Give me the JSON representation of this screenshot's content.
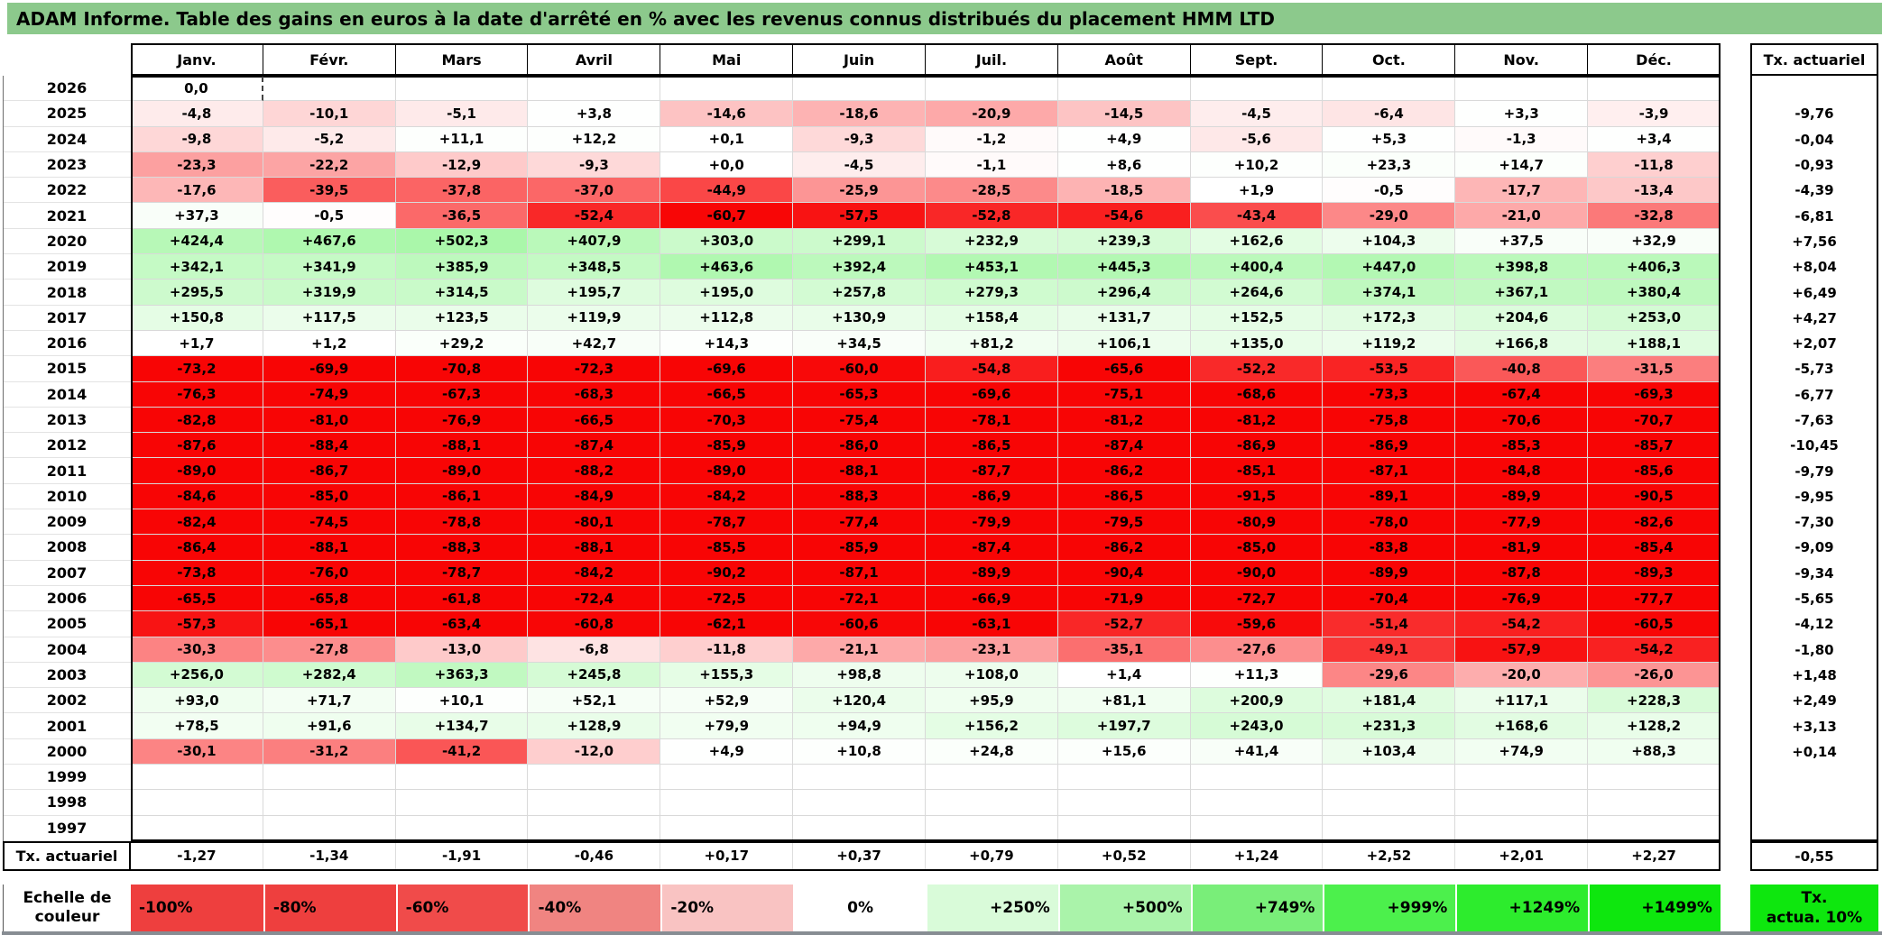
{
  "title": "ADAM Informe. Table des gains en euros à la date d'arrêté en % avec les revenus connus distribués du placement HMM LTD",
  "months": [
    "Janv.",
    "Févr.",
    "Mars",
    "Avril",
    "Mai",
    "Juin",
    "Juil.",
    "Août",
    "Sept.",
    "Oct.",
    "Nov.",
    "Déc."
  ],
  "tx_column": {
    "header": "Tx. actuariel"
  },
  "rows": [
    {
      "year": "2026",
      "values": [
        "0,0",
        "",
        "",
        "",
        "",
        "",
        "",
        "",
        "",
        "",
        "",
        ""
      ],
      "tx": ""
    },
    {
      "year": "2025",
      "values": [
        "-4,8",
        "-10,1",
        "-5,1",
        "+3,8",
        "-14,6",
        "-18,6",
        "-20,9",
        "-14,5",
        "-4,5",
        "-6,4",
        "+3,3",
        "-3,9"
      ],
      "tx": "-9,76"
    },
    {
      "year": "2024",
      "values": [
        "-9,8",
        "-5,2",
        "+11,1",
        "+12,2",
        "+0,1",
        "-9,3",
        "-1,2",
        "+4,9",
        "-5,6",
        "+5,3",
        "-1,3",
        "+3,4"
      ],
      "tx": "-0,04"
    },
    {
      "year": "2023",
      "values": [
        "-23,3",
        "-22,2",
        "-12,9",
        "-9,3",
        "+0,0",
        "-4,5",
        "-1,1",
        "+8,6",
        "+10,2",
        "+23,3",
        "+14,7",
        "-11,8"
      ],
      "tx": "-0,93"
    },
    {
      "year": "2022",
      "values": [
        "-17,6",
        "-39,5",
        "-37,8",
        "-37,0",
        "-44,9",
        "-25,9",
        "-28,5",
        "-18,5",
        "+1,9",
        "-0,5",
        "-17,7",
        "-13,4"
      ],
      "tx": "-4,39"
    },
    {
      "year": "2021",
      "values": [
        "+37,3",
        "-0,5",
        "-36,5",
        "-52,4",
        "-60,7",
        "-57,5",
        "-52,8",
        "-54,6",
        "-43,4",
        "-29,0",
        "-21,0",
        "-32,8"
      ],
      "tx": "-6,81"
    },
    {
      "year": "2020",
      "values": [
        "+424,4",
        "+467,6",
        "+502,3",
        "+407,9",
        "+303,0",
        "+299,1",
        "+232,9",
        "+239,3",
        "+162,6",
        "+104,3",
        "+37,5",
        "+32,9"
      ],
      "tx": "+7,56"
    },
    {
      "year": "2019",
      "values": [
        "+342,1",
        "+341,9",
        "+385,9",
        "+348,5",
        "+463,6",
        "+392,4",
        "+453,1",
        "+445,3",
        "+400,4",
        "+447,0",
        "+398,8",
        "+406,3"
      ],
      "tx": "+8,04"
    },
    {
      "year": "2018",
      "values": [
        "+295,5",
        "+319,9",
        "+314,5",
        "+195,7",
        "+195,0",
        "+257,8",
        "+279,3",
        "+296,4",
        "+264,6",
        "+374,1",
        "+367,1",
        "+380,4"
      ],
      "tx": "+6,49"
    },
    {
      "year": "2017",
      "values": [
        "+150,8",
        "+117,5",
        "+123,5",
        "+119,9",
        "+112,8",
        "+130,9",
        "+158,4",
        "+131,7",
        "+152,5",
        "+172,3",
        "+204,6",
        "+253,0"
      ],
      "tx": "+4,27"
    },
    {
      "year": "2016",
      "values": [
        "+1,7",
        "+1,2",
        "+29,2",
        "+42,7",
        "+14,3",
        "+34,5",
        "+81,2",
        "+106,1",
        "+135,0",
        "+119,2",
        "+166,8",
        "+188,1"
      ],
      "tx": "+2,07"
    },
    {
      "year": "2015",
      "values": [
        "-73,2",
        "-69,9",
        "-70,8",
        "-72,3",
        "-69,6",
        "-60,0",
        "-54,8",
        "-65,6",
        "-52,2",
        "-53,5",
        "-40,8",
        "-31,5"
      ],
      "tx": "-5,73"
    },
    {
      "year": "2014",
      "values": [
        "-76,3",
        "-74,9",
        "-67,3",
        "-68,3",
        "-66,5",
        "-65,3",
        "-69,6",
        "-75,1",
        "-68,6",
        "-73,3",
        "-67,4",
        "-69,3"
      ],
      "tx": "-6,77"
    },
    {
      "year": "2013",
      "values": [
        "-82,8",
        "-81,0",
        "-76,9",
        "-66,5",
        "-70,3",
        "-75,4",
        "-78,1",
        "-81,2",
        "-81,2",
        "-75,8",
        "-70,6",
        "-70,7"
      ],
      "tx": "-7,63"
    },
    {
      "year": "2012",
      "values": [
        "-87,6",
        "-88,4",
        "-88,1",
        "-87,4",
        "-85,9",
        "-86,0",
        "-86,5",
        "-87,4",
        "-86,9",
        "-86,9",
        "-85,3",
        "-85,7"
      ],
      "tx": "-10,45"
    },
    {
      "year": "2011",
      "values": [
        "-89,0",
        "-86,7",
        "-89,0",
        "-88,2",
        "-89,0",
        "-88,1",
        "-87,7",
        "-86,2",
        "-85,1",
        "-87,1",
        "-84,8",
        "-85,6"
      ],
      "tx": "-9,79"
    },
    {
      "year": "2010",
      "values": [
        "-84,6",
        "-85,0",
        "-86,1",
        "-84,9",
        "-84,2",
        "-88,3",
        "-86,9",
        "-86,5",
        "-91,5",
        "-89,1",
        "-89,9",
        "-90,5"
      ],
      "tx": "-9,95"
    },
    {
      "year": "2009",
      "values": [
        "-82,4",
        "-74,5",
        "-78,8",
        "-80,1",
        "-78,7",
        "-77,4",
        "-79,9",
        "-79,5",
        "-80,9",
        "-78,0",
        "-77,9",
        "-82,6"
      ],
      "tx": "-7,30"
    },
    {
      "year": "2008",
      "values": [
        "-86,4",
        "-88,1",
        "-88,3",
        "-88,1",
        "-85,5",
        "-85,9",
        "-87,4",
        "-86,2",
        "-85,0",
        "-83,8",
        "-81,9",
        "-85,4"
      ],
      "tx": "-9,09"
    },
    {
      "year": "2007",
      "values": [
        "-73,8",
        "-76,0",
        "-78,7",
        "-84,2",
        "-90,2",
        "-87,1",
        "-89,9",
        "-90,4",
        "-90,0",
        "-89,9",
        "-87,8",
        "-89,3"
      ],
      "tx": "-9,34"
    },
    {
      "year": "2006",
      "values": [
        "-65,5",
        "-65,8",
        "-61,8",
        "-72,4",
        "-72,5",
        "-72,1",
        "-66,9",
        "-71,9",
        "-72,7",
        "-70,4",
        "-76,9",
        "-77,7"
      ],
      "tx": "-5,65"
    },
    {
      "year": "2005",
      "values": [
        "-57,3",
        "-65,1",
        "-63,4",
        "-60,8",
        "-62,1",
        "-60,6",
        "-63,1",
        "-52,7",
        "-59,6",
        "-51,4",
        "-54,2",
        "-60,5"
      ],
      "tx": "-4,12"
    },
    {
      "year": "2004",
      "values": [
        "-30,3",
        "-27,8",
        "-13,0",
        "-6,8",
        "-11,8",
        "-21,1",
        "-23,1",
        "-35,1",
        "-27,6",
        "-49,1",
        "-57,9",
        "-54,2"
      ],
      "tx": "-1,80"
    },
    {
      "year": "2003",
      "values": [
        "+256,0",
        "+282,4",
        "+363,3",
        "+245,8",
        "+155,3",
        "+98,8",
        "+108,0",
        "+1,4",
        "+11,3",
        "-29,6",
        "-20,0",
        "-26,0"
      ],
      "tx": "+1,48"
    },
    {
      "year": "2002",
      "values": [
        "+93,0",
        "+71,7",
        "+10,1",
        "+52,1",
        "+52,9",
        "+120,4",
        "+95,9",
        "+81,1",
        "+200,9",
        "+181,4",
        "+117,1",
        "+228,3"
      ],
      "tx": "+2,49"
    },
    {
      "year": "2001",
      "values": [
        "+78,5",
        "+91,6",
        "+134,7",
        "+128,9",
        "+79,9",
        "+94,9",
        "+156,2",
        "+197,7",
        "+243,0",
        "+231,3",
        "+168,6",
        "+128,2"
      ],
      "tx": "+3,13"
    },
    {
      "year": "2000",
      "values": [
        "-30,1",
        "-31,2",
        "-41,2",
        "-12,0",
        "+4,9",
        "+10,8",
        "+24,8",
        "+15,6",
        "+41,4",
        "+103,4",
        "+74,9",
        "+88,3"
      ],
      "tx": "+0,14"
    },
    {
      "year": "1999",
      "values": [
        "",
        "",
        "",
        "",
        "",
        "",
        "",
        "",
        "",
        "",
        "",
        ""
      ],
      "tx": ""
    },
    {
      "year": "1998",
      "values": [
        "",
        "",
        "",
        "",
        "",
        "",
        "",
        "",
        "",
        "",
        "",
        ""
      ],
      "tx": ""
    },
    {
      "year": "1997",
      "values": [
        "",
        "",
        "",
        "",
        "",
        "",
        "",
        "",
        "",
        "",
        "",
        ""
      ],
      "tx": ""
    }
  ],
  "bottom_row": {
    "label": "Tx. actuariel",
    "values": [
      "-1,27",
      "-1,34",
      "-1,91",
      "-0,46",
      "+0,17",
      "+0,37",
      "+0,79",
      "+0,52",
      "+1,24",
      "+2,52",
      "+2,01",
      "+2,27"
    ],
    "tx": "-0,55"
  },
  "scale": {
    "label_line1": "Echelle de",
    "label_line2": "couleur",
    "cells": [
      {
        "label": "-100%",
        "color": "#EE3F3E",
        "align": "left"
      },
      {
        "label": "-80%",
        "color": "#EE3F3E",
        "align": "left"
      },
      {
        "label": "-60%",
        "color": "#F04B4A",
        "align": "left"
      },
      {
        "label": "-40%",
        "color": "#F08481",
        "align": "left"
      },
      {
        "label": "-20%",
        "color": "#F9C3C2",
        "align": "left"
      },
      {
        "label": "0%",
        "color": "#FFFFFF",
        "align": "center"
      },
      {
        "label": "+250%",
        "color": "#D9FBD9",
        "align": "right"
      },
      {
        "label": "+500%",
        "color": "#AAF3AA",
        "align": "right"
      },
      {
        "label": "+749%",
        "color": "#79EE79",
        "align": "right"
      },
      {
        "label": "+999%",
        "color": "#4CF04C",
        "align": "right"
      },
      {
        "label": "+1249%",
        "color": "#2DEC2D",
        "align": "right"
      },
      {
        "label": "+1499%",
        "color": "#0EE70E",
        "align": "right"
      }
    ],
    "tx_cell": {
      "line1": "Tx.",
      "line2": "actua. 10%",
      "color": "#0EE70E"
    }
  },
  "colors": {
    "title_bg": "#8CC98C",
    "negative_full": "#F90505",
    "positive_full": "#00E800",
    "neg_saturation_value": 61,
    "pos_saturation_value": 1499
  }
}
